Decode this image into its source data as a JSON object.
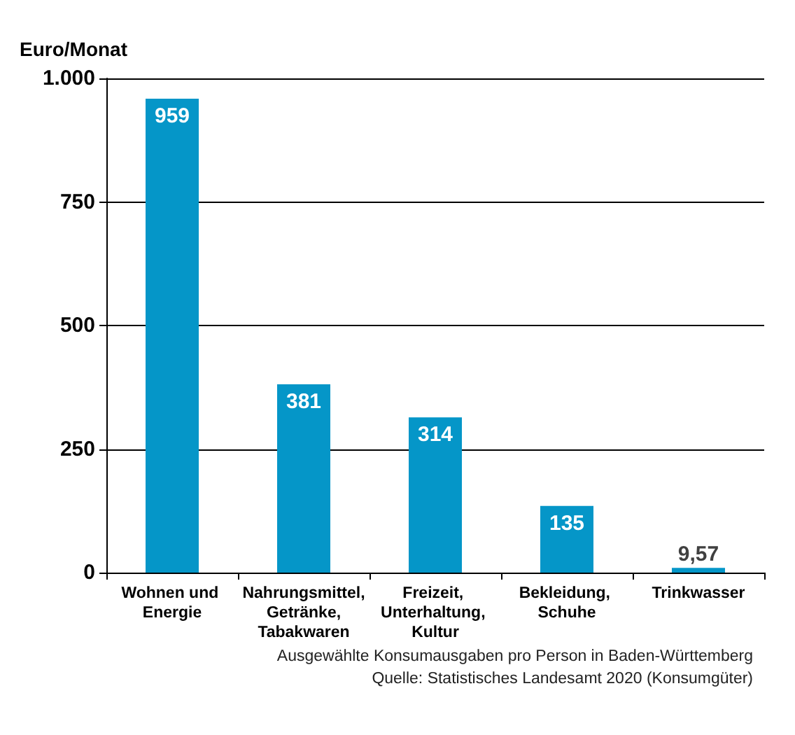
{
  "chart_data": {
    "type": "bar",
    "ylabel": "Euro/Monat",
    "categories": [
      "Wohnen und Energie",
      "Nahrungsmittel, Getränke, Tabakwaren",
      "Freizeit, Unterhaltung, Kultur",
      "Bekleidung, Schuhe",
      "Trinkwasser"
    ],
    "values": [
      959,
      381,
      314,
      135,
      9.57
    ],
    "value_labels": [
      "959",
      "381",
      "314",
      "135",
      "9,57"
    ],
    "color": "#0596c8",
    "ylim": [
      0,
      1000
    ],
    "yticks": [
      0,
      250,
      500,
      750,
      {
        "value": 1000,
        "label": "1.000"
      }
    ],
    "grid": "y",
    "annotations": [
      "Ausgewählte Konsumausgaben pro Person in Baden-Württemberg",
      "Quelle: Statistisches Landesamt 2020 (Konsumgüter)"
    ]
  }
}
